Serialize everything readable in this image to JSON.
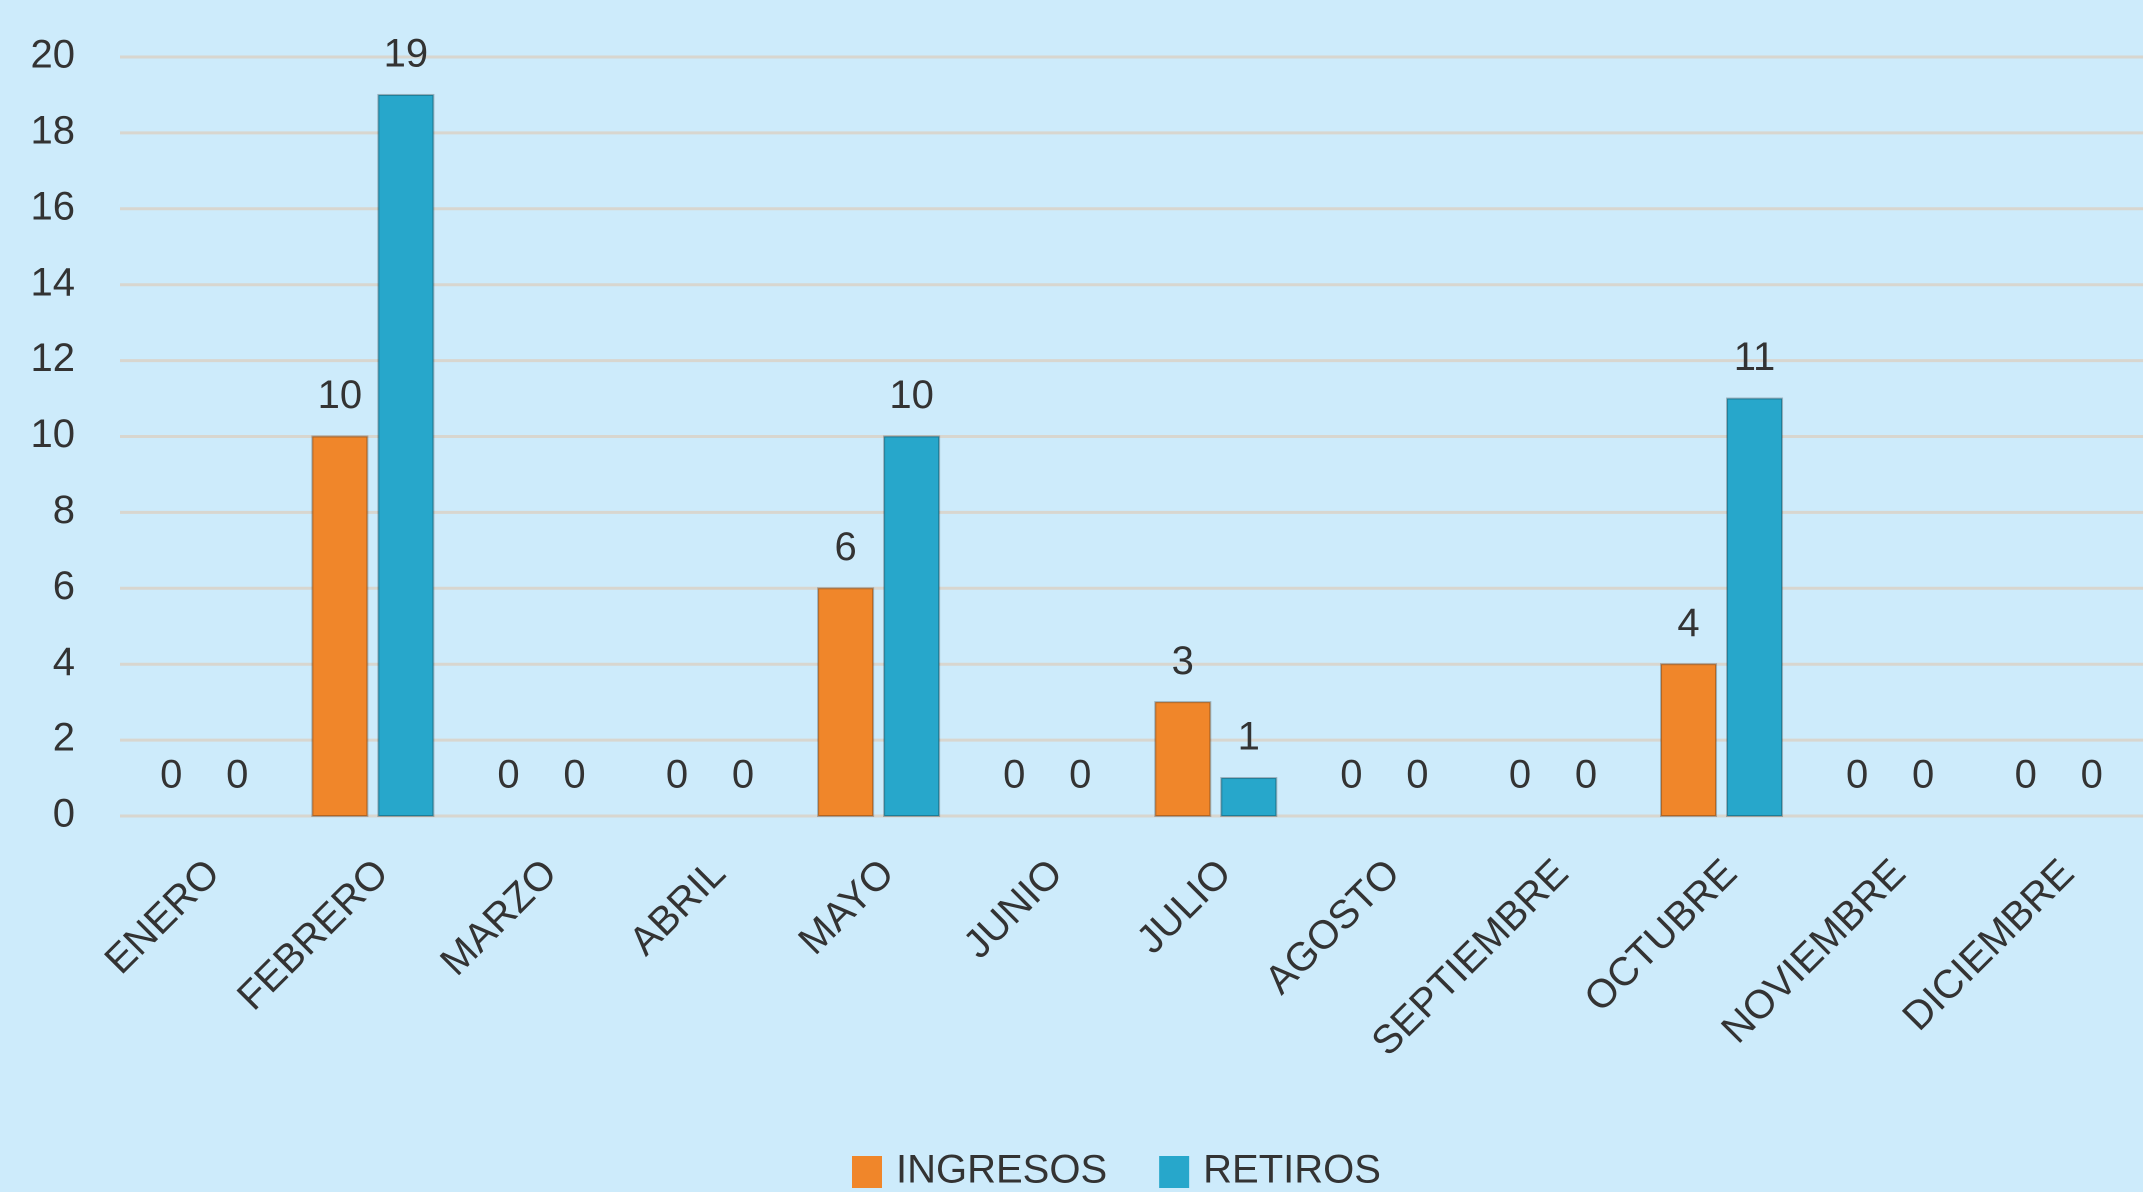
{
  "chart_data": {
    "type": "bar",
    "categories": [
      "ENERO",
      "FEBRERO",
      "MARZO",
      "ABRIL",
      "MAYO",
      "JUNIO",
      "JULIO",
      "AGOSTO",
      "SEPTIEMBRE",
      "OCTUBRE",
      "NOVIEMBRE",
      "DICIEMBRE"
    ],
    "series": [
      {
        "name": "INGRESOS",
        "color": "#f0862a",
        "values": [
          0,
          10,
          0,
          0,
          6,
          0,
          3,
          0,
          0,
          4,
          0,
          0
        ]
      },
      {
        "name": "RETIROS",
        "color": "#27a7cb",
        "values": [
          0,
          19,
          0,
          0,
          10,
          0,
          1,
          0,
          0,
          11,
          0,
          0
        ]
      }
    ],
    "ylim": [
      0,
      20
    ],
    "yticks": [
      0,
      2,
      4,
      6,
      8,
      10,
      12,
      14,
      16,
      18,
      20
    ],
    "grid": true,
    "legend": "bottom"
  }
}
